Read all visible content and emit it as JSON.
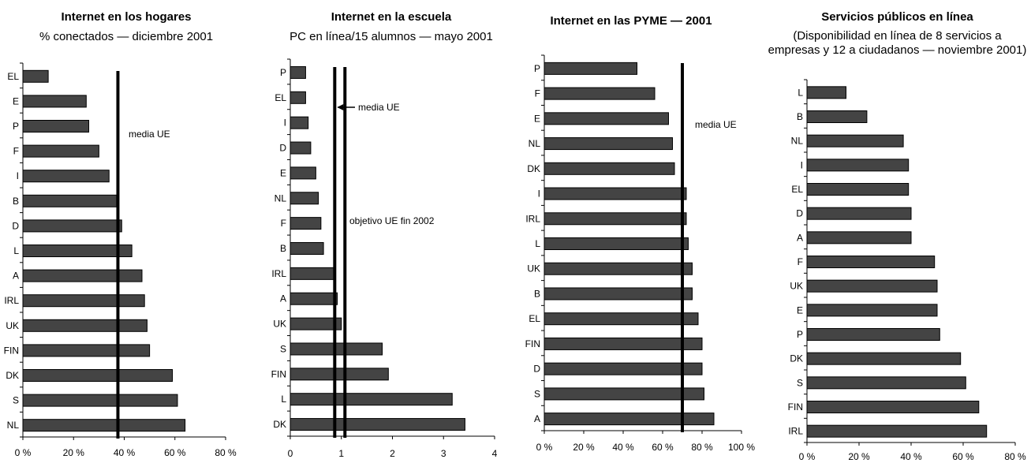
{
  "chart_data": [
    {
      "type": "bar",
      "title": "Internet en los hogares",
      "subtitle": "% conectados — diciembre 2001",
      "categories": [
        "EL",
        "E",
        "P",
        "F",
        "I",
        "B",
        "D",
        "L",
        "A",
        "IRL",
        "UK",
        "FIN",
        "DK",
        "S",
        "NL"
      ],
      "values": [
        10,
        25,
        26,
        30,
        34,
        37,
        39,
        43,
        47,
        48,
        49,
        50,
        59,
        61,
        64
      ],
      "xlim": [
        0,
        80
      ],
      "ticks": [
        0,
        20,
        40,
        60,
        80
      ],
      "tick_labels": [
        "0 %",
        "20 %",
        "40 %",
        "60 %",
        "80 %"
      ],
      "reference_lines": [
        {
          "value": 37.5,
          "label": "media UE"
        }
      ]
    },
    {
      "type": "bar",
      "title": "Internet en la escuela",
      "subtitle": "PC en línea/15 alumnos — mayo 2001",
      "categories": [
        "P",
        "EL",
        "I",
        "D",
        "E",
        "NL",
        "F",
        "B",
        "IRL",
        "A",
        "UK",
        "S",
        "FIN",
        "L",
        "DK"
      ],
      "values": [
        0.3,
        0.3,
        0.35,
        0.4,
        0.5,
        0.55,
        0.6,
        0.65,
        0.85,
        0.92,
        1.0,
        1.8,
        1.92,
        3.17,
        3.42
      ],
      "xlim": [
        0,
        4
      ],
      "ticks": [
        0,
        1,
        2,
        3,
        4
      ],
      "tick_labels": [
        "0",
        "1",
        "2",
        "3",
        "4"
      ],
      "reference_lines": [
        {
          "value": 0.87,
          "label": "media UE"
        },
        {
          "value": 1.07,
          "label": "objetivo UE fin 2002"
        }
      ]
    },
    {
      "type": "bar",
      "title": "Internet en las PYME — 2001",
      "subtitle": "",
      "categories": [
        "P",
        "F",
        "E",
        "NL",
        "DK",
        "I",
        "IRL",
        "L",
        "UK",
        "B",
        "EL",
        "FIN",
        "D",
        "S",
        "A"
      ],
      "values": [
        47,
        56,
        63,
        65,
        66,
        72,
        72,
        73,
        75,
        75,
        78,
        80,
        80,
        81,
        86
      ],
      "xlim": [
        0,
        100
      ],
      "ticks": [
        0,
        20,
        40,
        60,
        80,
        100
      ],
      "tick_labels": [
        "0 %",
        "20 %",
        "40 %",
        "60 %",
        "80 %",
        "100 %"
      ],
      "reference_lines": [
        {
          "value": 70,
          "label": "media UE"
        }
      ]
    },
    {
      "type": "bar",
      "title": "Servicios públicos en línea",
      "subtitle": "(Disponibilidad en línea de 8 servicios a empresas y 12 a ciudadanos — noviembre 2001)",
      "categories": [
        "L",
        "B",
        "NL",
        "I",
        "EL",
        "D",
        "A",
        "F",
        "UK",
        "E",
        "P",
        "DK",
        "S",
        "FIN",
        "IRL"
      ],
      "values": [
        15,
        23,
        37,
        39,
        39,
        40,
        40,
        49,
        50,
        50,
        51,
        59,
        61,
        66,
        69
      ],
      "xlim": [
        0,
        80
      ],
      "ticks": [
        0,
        20,
        40,
        60,
        80
      ],
      "tick_labels": [
        "0 %",
        "20 %",
        "40 %",
        "60 %",
        "80 %"
      ],
      "reference_lines": []
    }
  ],
  "colors": {
    "bar_fill": "#444444",
    "bar_stroke": "#000000",
    "ref_line": "#000000"
  }
}
